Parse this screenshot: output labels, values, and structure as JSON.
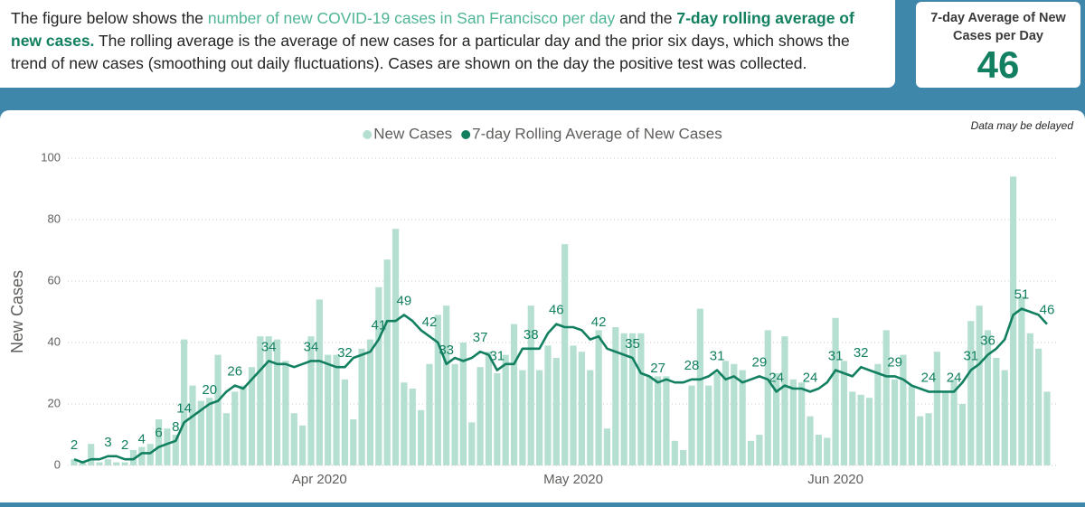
{
  "intro": [
    "The figure below shows the ",
    "number of new COVID-19 cases in San Francisco per day",
    " and the ",
    "7-day rolling average of new cases.",
    " The rolling average is the average of new cases for a particular day and the prior six days, which shows the trend of new cases (smoothing out daily fluctuations). Cases are shown on the day the positive test was collected."
  ],
  "kpi": {
    "title": "7-day Average of New Cases per Day",
    "value": 46
  },
  "chart_data": {
    "type": "combo",
    "note": "Data may be delayed",
    "y_label": "New Cases",
    "ylim": [
      0,
      100
    ],
    "yticks": [
      0,
      20,
      40,
      60,
      80,
      100
    ],
    "grid": true,
    "categories": [
      null,
      null,
      null,
      null,
      null,
      null,
      null,
      null,
      null,
      null,
      null,
      null,
      null,
      null,
      null,
      null,
      null,
      null,
      null,
      null,
      null,
      null,
      null,
      null,
      null,
      null,
      null,
      null,
      null,
      "Apr 2020",
      null,
      null,
      null,
      null,
      null,
      null,
      null,
      null,
      null,
      null,
      null,
      null,
      null,
      null,
      null,
      null,
      null,
      null,
      null,
      null,
      null,
      null,
      null,
      null,
      null,
      null,
      null,
      null,
      null,
      "May 2020",
      null,
      null,
      null,
      null,
      null,
      null,
      null,
      null,
      null,
      null,
      null,
      null,
      null,
      null,
      null,
      null,
      null,
      null,
      null,
      null,
      null,
      null,
      null,
      null,
      null,
      null,
      null,
      null,
      null,
      null,
      "Jun 2020",
      null,
      null,
      null,
      null,
      null,
      null,
      null,
      null,
      null,
      null,
      null,
      null,
      null,
      null,
      null,
      null,
      null,
      null,
      null,
      null,
      null,
      null,
      null,
      null,
      null
    ],
    "series": [
      {
        "name": "New Cases",
        "type": "bar",
        "color": "#b5dfd1",
        "values": [
          2,
          1,
          7,
          1,
          2,
          1,
          1,
          5,
          6,
          7,
          15,
          12,
          10,
          41,
          26,
          21,
          22,
          36,
          17,
          24,
          26,
          32,
          42,
          42,
          41,
          34,
          17,
          13,
          42,
          54,
          36,
          36,
          28,
          15,
          38,
          41,
          58,
          67,
          77,
          27,
          25,
          18,
          33,
          49,
          52,
          33,
          40,
          14,
          32,
          37,
          30,
          36,
          46,
          31,
          52,
          31,
          39,
          35,
          72,
          39,
          37,
          31,
          44,
          12,
          45,
          43,
          43,
          43,
          29,
          29,
          29,
          8,
          5,
          26,
          51,
          26,
          30,
          34,
          33,
          31,
          8,
          10,
          44,
          30,
          42,
          28,
          27,
          16,
          10,
          9,
          48,
          34,
          24,
          23,
          22,
          33,
          44,
          28,
          36,
          26,
          16,
          17,
          37,
          24,
          28,
          20,
          47,
          52,
          44,
          35,
          31,
          94,
          55,
          43,
          38,
          24
        ]
      },
      {
        "name": "7-day Rolling Average of New Cases",
        "type": "line",
        "color": "#128060",
        "values": [
          2,
          1,
          2,
          2,
          3,
          3,
          2,
          2,
          4,
          4,
          6,
          7,
          8,
          14,
          16,
          18,
          20,
          21,
          24,
          26,
          25,
          28,
          31,
          34,
          33,
          33,
          32,
          33,
          34,
          34,
          33,
          32,
          32,
          35,
          36,
          37,
          41,
          47,
          47,
          49,
          47,
          44,
          42,
          40,
          33,
          35,
          34,
          35,
          37,
          36,
          31,
          33,
          33,
          38,
          38,
          38,
          43,
          46,
          45,
          45,
          44,
          41,
          42,
          38,
          37,
          36,
          35,
          30,
          29,
          27,
          28,
          27,
          27,
          28,
          28,
          29,
          31,
          28,
          29,
          27,
          28,
          29,
          28,
          24,
          26,
          25,
          25,
          24,
          25,
          27,
          31,
          30,
          29,
          32,
          31,
          30,
          29,
          29,
          28,
          26,
          25,
          24,
          24,
          24,
          24,
          27,
          31,
          33,
          36,
          38,
          41,
          49,
          51,
          50,
          49,
          46
        ],
        "value_labels": [
          "2",
          null,
          null,
          null,
          "3",
          null,
          "2",
          null,
          "4",
          null,
          "6",
          null,
          "8",
          "14",
          null,
          null,
          "20",
          null,
          null,
          "26",
          null,
          null,
          null,
          "34",
          null,
          null,
          null,
          null,
          "34",
          null,
          null,
          null,
          "32",
          null,
          null,
          null,
          "41",
          null,
          null,
          "49",
          null,
          null,
          "42",
          null,
          "33",
          null,
          null,
          null,
          "37",
          null,
          "31",
          null,
          null,
          null,
          "38",
          null,
          null,
          "46",
          null,
          null,
          null,
          null,
          "42",
          null,
          null,
          null,
          "35",
          null,
          null,
          "27",
          null,
          null,
          null,
          "28",
          null,
          null,
          "31",
          null,
          null,
          null,
          null,
          "29",
          null,
          "24",
          null,
          null,
          null,
          "24",
          null,
          null,
          "31",
          null,
          null,
          "32",
          null,
          null,
          null,
          "29",
          null,
          null,
          null,
          "24",
          null,
          null,
          "24",
          null,
          "31",
          null,
          "36",
          null,
          null,
          null,
          "51",
          null,
          null,
          "46"
        ]
      }
    ]
  }
}
